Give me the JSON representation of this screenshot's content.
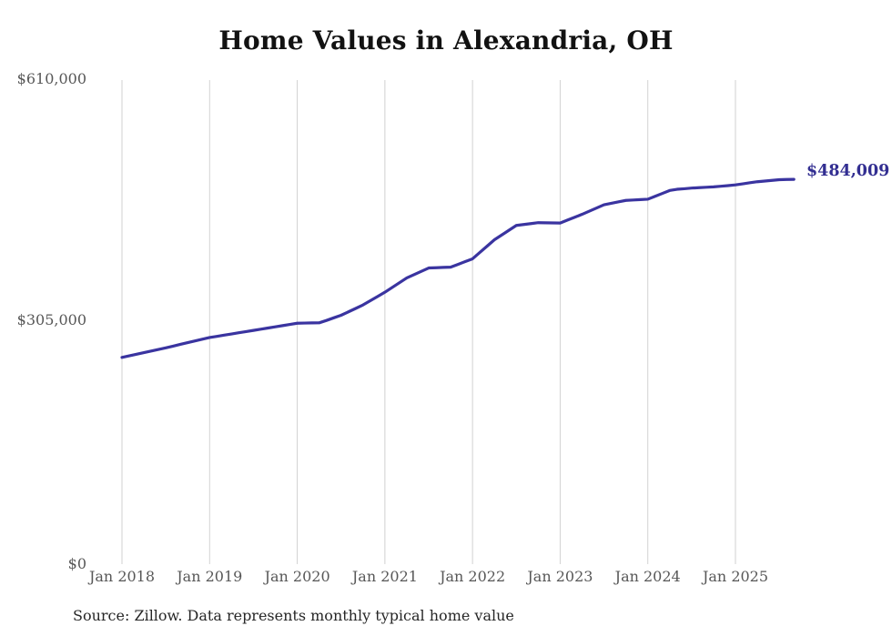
{
  "page": {
    "title": "Home Values in Alexandria, OH",
    "source_note": "Source: Zillow. Data represents monthly typical home value"
  },
  "colors": {
    "line": "#3a34a0",
    "end_label": "#322e91",
    "title": "#121212",
    "tick": "#575757",
    "gridline": "#d2d2d2",
    "source": "#262626",
    "background": "#ffffff"
  },
  "chart_data": {
    "type": "line",
    "title": "Home Values in Alexandria, OH",
    "series_name": "Typical home value",
    "unit": "USD",
    "grid": "vertical-only",
    "legend": "none",
    "ylim": [
      0,
      610000
    ],
    "yticks": [
      {
        "label": "$610,000",
        "value": 610000
      },
      {
        "label": "$305,000",
        "value": 305000
      },
      {
        "label": "$0",
        "value": 0
      }
    ],
    "xticks": [
      "Jan 2018",
      "Jan 2019",
      "Jan 2020",
      "Jan 2021",
      "Jan 2022",
      "Jan 2023",
      "Jan 2024",
      "Jan 2025"
    ],
    "end_label": "$484,009",
    "end_value": 484009,
    "x": [
      "2018-01",
      "2018-02",
      "2018-03",
      "2018-04",
      "2018-05",
      "2018-06",
      "2018-07",
      "2018-08",
      "2018-09",
      "2018-10",
      "2018-11",
      "2018-12",
      "2019-01",
      "2019-02",
      "2019-03",
      "2019-04",
      "2019-05",
      "2019-06",
      "2019-07",
      "2019-08",
      "2019-09",
      "2019-10",
      "2019-11",
      "2019-12",
      "2020-01",
      "2020-02",
      "2020-03",
      "2020-04",
      "2020-05",
      "2020-06",
      "2020-07",
      "2020-08",
      "2020-09",
      "2020-10",
      "2020-11",
      "2020-12",
      "2021-01",
      "2021-02",
      "2021-03",
      "2021-04",
      "2021-05",
      "2021-06",
      "2021-07",
      "2021-08",
      "2021-09",
      "2021-10",
      "2021-11",
      "2021-12",
      "2022-01",
      "2022-02",
      "2022-03",
      "2022-04",
      "2022-05",
      "2022-06",
      "2022-07",
      "2022-08",
      "2022-09",
      "2022-10",
      "2022-11",
      "2022-12",
      "2023-01",
      "2023-02",
      "2023-03",
      "2023-04",
      "2023-05",
      "2023-06",
      "2023-07",
      "2023-08",
      "2023-09",
      "2023-10",
      "2023-11",
      "2023-12",
      "2024-01",
      "2024-02",
      "2024-03",
      "2024-04",
      "2024-05",
      "2024-06",
      "2024-07",
      "2024-08",
      "2024-09",
      "2024-10",
      "2024-11",
      "2024-12",
      "2025-01",
      "2025-02",
      "2025-03",
      "2025-04",
      "2025-05",
      "2025-06",
      "2025-07",
      "2025-08",
      "2025-09"
    ],
    "values": [
      260000,
      262000,
      264000,
      266000,
      268000,
      270000,
      272000,
      274200,
      276400,
      278600,
      280700,
      282900,
      285000,
      286500,
      288000,
      289500,
      291000,
      292500,
      294000,
      295500,
      297000,
      298500,
      300000,
      301500,
      303000,
      303200,
      303400,
      303500,
      306500,
      309800,
      313000,
      317300,
      321600,
      326000,
      331300,
      336600,
      342000,
      348000,
      354000,
      360000,
      364200,
      368300,
      372500,
      372800,
      373200,
      373500,
      377000,
      380500,
      384000,
      392000,
      400000,
      408000,
      414000,
      420000,
      426000,
      427200,
      428300,
      429500,
      429300,
      429200,
      429000,
      432700,
      436300,
      440000,
      444000,
      448000,
      452000,
      453800,
      455700,
      457500,
      458000,
      458500,
      459000,
      462700,
      466300,
      470000,
      471500,
      472200,
      473000,
      473500,
      474000,
      474500,
      475300,
      476100,
      477000,
      478300,
      479700,
      481000,
      481800,
      482700,
      483500,
      483800,
      484009
    ]
  }
}
